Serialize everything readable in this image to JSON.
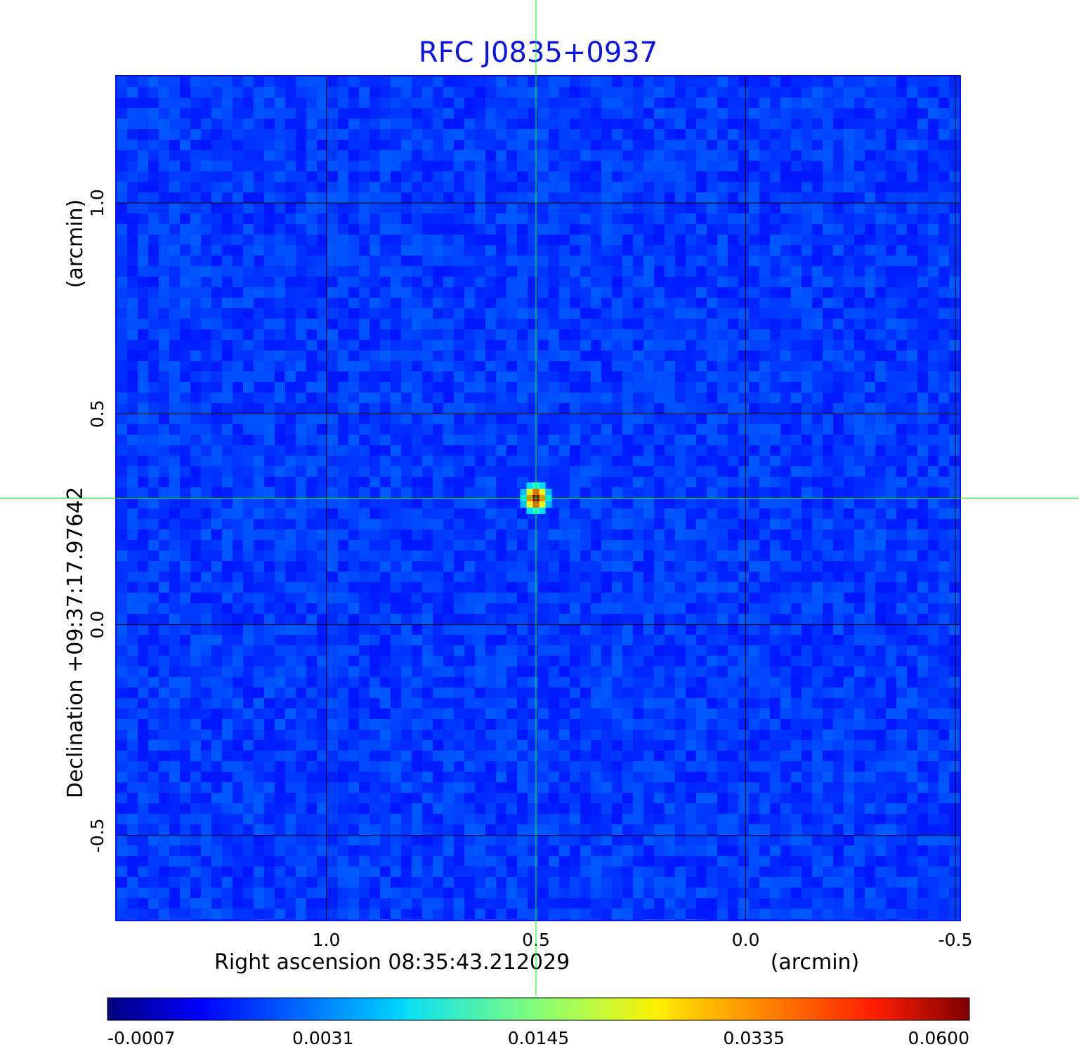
{
  "chart_data": {
    "type": "heatmap",
    "title": "RFC J0835+0937",
    "xlabel": "Right ascension  08:35:43.212029",
    "xunit": "(arcmin)",
    "ylabel": "Declination  +09:37:17.97642",
    "yunit": "(arcmin)",
    "xlim": [
      1.5,
      -0.51
    ],
    "ylim": [
      -0.7,
      1.3
    ],
    "x_ticks": [
      {
        "value": 1.0,
        "label": "1.0"
      },
      {
        "value": 0.5,
        "label": "0.5"
      },
      {
        "value": 0.0,
        "label": "0.0"
      },
      {
        "value": -0.5,
        "label": "-0.5"
      }
    ],
    "y_ticks": [
      {
        "value": 1.0,
        "label": "1.0"
      },
      {
        "value": 0.5,
        "label": "0.5"
      },
      {
        "value": 0.0,
        "label": "0.0"
      },
      {
        "value": -0.5,
        "label": "-0.5"
      }
    ],
    "grid": true,
    "colormap": "jet",
    "colorbar": {
      "position": "bottom",
      "ticks": [
        "-0.0007",
        "0.0031",
        "0.0145",
        "0.0335",
        "0.0600"
      ],
      "min": -0.0007,
      "max": 0.06
    },
    "peak": {
      "x": 0.5,
      "y": 0.3,
      "value": 0.06
    },
    "crosshair": {
      "x": 0.5,
      "y": 0.3,
      "color": "#00ff00"
    },
    "background_level": 0.0
  }
}
